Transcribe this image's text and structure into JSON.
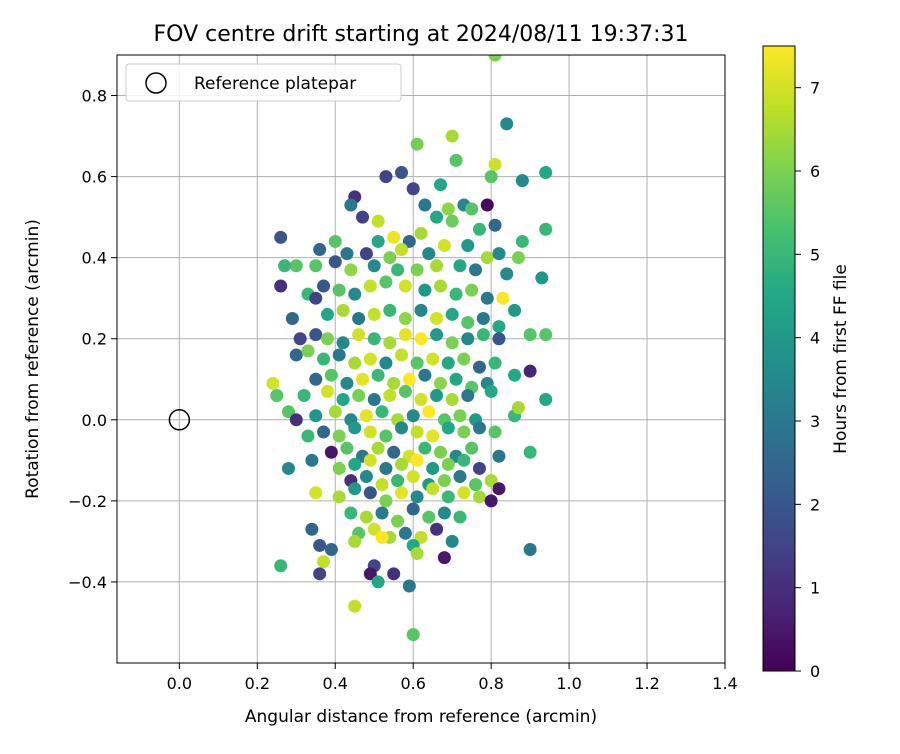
{
  "chart_data": {
    "type": "scatter",
    "title": "FOV centre drift starting at 2024/08/11 19:37:31",
    "xlabel": "Angular distance from reference (arcmin)",
    "ylabel": "Rotation from reference (arcmin)",
    "xlim": [
      -0.16,
      1.4
    ],
    "ylim": [
      -0.6,
      0.9
    ],
    "xticks": [
      "0.0",
      "0.2",
      "0.4",
      "0.6",
      "0.8",
      "1.0",
      "1.2",
      "1.4"
    ],
    "xtick_values": [
      0.0,
      0.2,
      0.4,
      0.6,
      0.8,
      1.0,
      1.2,
      1.4
    ],
    "yticks": [
      "−0.4",
      "−0.2",
      "0.0",
      "0.2",
      "0.4",
      "0.6",
      "0.8"
    ],
    "ytick_values": [
      -0.4,
      -0.2,
      0.0,
      0.2,
      0.4,
      0.6,
      0.8
    ],
    "grid": true,
    "legend": {
      "label": "Reference platepar",
      "position": "top-left"
    },
    "reference_point": {
      "x": 0.0,
      "y": 0.0
    },
    "colorbar": {
      "label": "Hours from first FF file",
      "colormap": "viridis",
      "range": [
        0,
        7.5
      ],
      "ticks": [
        "0",
        "1",
        "2",
        "3",
        "4",
        "5",
        "6",
        "7"
      ],
      "tick_values": [
        0,
        1,
        2,
        3,
        4,
        5,
        6,
        7
      ]
    },
    "points": [
      [
        0.81,
        0.9,
        6.0
      ],
      [
        0.84,
        0.73,
        3.5
      ],
      [
        0.7,
        0.7,
        6.5
      ],
      [
        0.81,
        0.63,
        6.9
      ],
      [
        0.61,
        0.68,
        5.9
      ],
      [
        0.71,
        0.64,
        5.5
      ],
      [
        0.94,
        0.61,
        4.5
      ],
      [
        0.88,
        0.59,
        3.5
      ],
      [
        0.53,
        0.6,
        1.5
      ],
      [
        0.57,
        0.61,
        2.0
      ],
      [
        0.8,
        0.6,
        5.5
      ],
      [
        0.6,
        0.57,
        1.5
      ],
      [
        0.67,
        0.58,
        4.5
      ],
      [
        0.73,
        0.53,
        3.5
      ],
      [
        0.79,
        0.53,
        0.2
      ],
      [
        0.45,
        0.55,
        1.0
      ],
      [
        0.47,
        0.5,
        1.5
      ],
      [
        0.51,
        0.49,
        6.8
      ],
      [
        0.44,
        0.53,
        3.0
      ],
      [
        0.69,
        0.52,
        6.2
      ],
      [
        0.75,
        0.52,
        5.5
      ],
      [
        0.63,
        0.53,
        3.0
      ],
      [
        0.66,
        0.5,
        4.5
      ],
      [
        0.7,
        0.49,
        5.8
      ],
      [
        0.77,
        0.47,
        5.0
      ],
      [
        0.81,
        0.48,
        2.5
      ],
      [
        0.88,
        0.44,
        5.0
      ],
      [
        0.94,
        0.47,
        5.0
      ],
      [
        0.51,
        0.44,
        4.5
      ],
      [
        0.55,
        0.45,
        7.3
      ],
      [
        0.59,
        0.44,
        2.5
      ],
      [
        0.62,
        0.46,
        6.5
      ],
      [
        0.26,
        0.45,
        2.0
      ],
      [
        0.4,
        0.44,
        5.5
      ],
      [
        0.36,
        0.42,
        2.5
      ],
      [
        0.43,
        0.41,
        3.0
      ],
      [
        0.48,
        0.41,
        1.5
      ],
      [
        0.54,
        0.4,
        6.0
      ],
      [
        0.57,
        0.42,
        6.8
      ],
      [
        0.64,
        0.41,
        3.5
      ],
      [
        0.68,
        0.43,
        7.0
      ],
      [
        0.74,
        0.43,
        4.0
      ],
      [
        0.79,
        0.4,
        6.5
      ],
      [
        0.82,
        0.41,
        3.5
      ],
      [
        0.3,
        0.38,
        5.5
      ],
      [
        0.27,
        0.38,
        5.0
      ],
      [
        0.35,
        0.38,
        5.5
      ],
      [
        0.4,
        0.39,
        2.0
      ],
      [
        0.44,
        0.37,
        6.2
      ],
      [
        0.5,
        0.38,
        3.5
      ],
      [
        0.56,
        0.37,
        5.0
      ],
      [
        0.61,
        0.37,
        6.0
      ],
      [
        0.66,
        0.38,
        6.5
      ],
      [
        0.72,
        0.38,
        4.5
      ],
      [
        0.76,
        0.37,
        3.0
      ],
      [
        0.84,
        0.36,
        3.5
      ],
      [
        0.93,
        0.35,
        4.0
      ],
      [
        0.87,
        0.4,
        6.0
      ],
      [
        0.26,
        0.33,
        1.0
      ],
      [
        0.33,
        0.31,
        5.0
      ],
      [
        0.37,
        0.33,
        2.0
      ],
      [
        0.41,
        0.32,
        5.5
      ],
      [
        0.45,
        0.31,
        3.5
      ],
      [
        0.49,
        0.33,
        6.8
      ],
      [
        0.53,
        0.34,
        5.5
      ],
      [
        0.58,
        0.33,
        7.0
      ],
      [
        0.63,
        0.32,
        4.0
      ],
      [
        0.67,
        0.33,
        6.5
      ],
      [
        0.71,
        0.31,
        5.0
      ],
      [
        0.75,
        0.32,
        6.0
      ],
      [
        0.79,
        0.3,
        3.0
      ],
      [
        0.83,
        0.3,
        7.5
      ],
      [
        0.86,
        0.27,
        4.0
      ],
      [
        0.29,
        0.25,
        2.5
      ],
      [
        0.35,
        0.3,
        1.5
      ],
      [
        0.38,
        0.26,
        4.5
      ],
      [
        0.42,
        0.27,
        6.5
      ],
      [
        0.46,
        0.25,
        3.0
      ],
      [
        0.5,
        0.26,
        6.8
      ],
      [
        0.54,
        0.27,
        5.0
      ],
      [
        0.58,
        0.25,
        6.2
      ],
      [
        0.62,
        0.27,
        3.5
      ],
      [
        0.66,
        0.25,
        7.0
      ],
      [
        0.7,
        0.26,
        4.5
      ],
      [
        0.74,
        0.24,
        5.5
      ],
      [
        0.78,
        0.25,
        3.0
      ],
      [
        0.82,
        0.23,
        4.5
      ],
      [
        0.9,
        0.21,
        5.5
      ],
      [
        0.94,
        0.21,
        5.5
      ],
      [
        0.31,
        0.2,
        1.5
      ],
      [
        0.35,
        0.21,
        2.0
      ],
      [
        0.38,
        0.2,
        6.0
      ],
      [
        0.42,
        0.19,
        3.5
      ],
      [
        0.46,
        0.21,
        7.0
      ],
      [
        0.5,
        0.2,
        5.0
      ],
      [
        0.54,
        0.19,
        6.5
      ],
      [
        0.58,
        0.21,
        7.2
      ],
      [
        0.62,
        0.2,
        7.5
      ],
      [
        0.66,
        0.21,
        4.0
      ],
      [
        0.7,
        0.19,
        6.0
      ],
      [
        0.74,
        0.2,
        3.5
      ],
      [
        0.78,
        0.21,
        5.0
      ],
      [
        0.82,
        0.2,
        2.0
      ],
      [
        0.3,
        0.16,
        2.5
      ],
      [
        0.33,
        0.17,
        6.0
      ],
      [
        0.37,
        0.15,
        5.0
      ],
      [
        0.41,
        0.16,
        3.0
      ],
      [
        0.45,
        0.14,
        6.5
      ],
      [
        0.49,
        0.15,
        7.0
      ],
      [
        0.53,
        0.14,
        3.5
      ],
      [
        0.57,
        0.16,
        6.8
      ],
      [
        0.61,
        0.14,
        5.5
      ],
      [
        0.65,
        0.15,
        7.0
      ],
      [
        0.69,
        0.14,
        4.5
      ],
      [
        0.73,
        0.15,
        6.0
      ],
      [
        0.77,
        0.13,
        2.5
      ],
      [
        0.81,
        0.14,
        5.0
      ],
      [
        0.9,
        0.12,
        0.8
      ],
      [
        0.86,
        0.11,
        4.5
      ],
      [
        0.24,
        0.09,
        7.0
      ],
      [
        0.35,
        0.1,
        2.5
      ],
      [
        0.39,
        0.11,
        5.5
      ],
      [
        0.43,
        0.09,
        3.5
      ],
      [
        0.47,
        0.1,
        7.2
      ],
      [
        0.51,
        0.11,
        5.0
      ],
      [
        0.55,
        0.09,
        6.5
      ],
      [
        0.59,
        0.1,
        7.5
      ],
      [
        0.63,
        0.11,
        3.0
      ],
      [
        0.67,
        0.09,
        6.2
      ],
      [
        0.71,
        0.1,
        4.5
      ],
      [
        0.75,
        0.08,
        5.5
      ],
      [
        0.79,
        0.09,
        3.5
      ],
      [
        0.25,
        0.06,
        5.5
      ],
      [
        0.32,
        0.06,
        5.0
      ],
      [
        0.38,
        0.07,
        7.0
      ],
      [
        0.42,
        0.05,
        4.5
      ],
      [
        0.46,
        0.06,
        6.0
      ],
      [
        0.5,
        0.05,
        3.0
      ],
      [
        0.54,
        0.06,
        6.8
      ],
      [
        0.58,
        0.07,
        5.5
      ],
      [
        0.62,
        0.05,
        7.0
      ],
      [
        0.66,
        0.06,
        4.0
      ],
      [
        0.7,
        0.05,
        6.5
      ],
      [
        0.74,
        0.06,
        3.0
      ],
      [
        0.8,
        0.07,
        4.5
      ],
      [
        0.94,
        0.05,
        4.5
      ],
      [
        0.28,
        0.02,
        5.5
      ],
      [
        0.3,
        0.0,
        1.0
      ],
      [
        0.35,
        0.01,
        4.0
      ],
      [
        0.4,
        0.02,
        6.5
      ],
      [
        0.44,
        0.0,
        3.5
      ],
      [
        0.48,
        0.01,
        7.2
      ],
      [
        0.52,
        0.02,
        5.0
      ],
      [
        0.56,
        0.0,
        6.5
      ],
      [
        0.6,
        0.01,
        3.5
      ],
      [
        0.64,
        0.02,
        7.5
      ],
      [
        0.68,
        0.0,
        5.5
      ],
      [
        0.72,
        0.01,
        6.0
      ],
      [
        0.76,
        0.0,
        4.0
      ],
      [
        0.86,
        0.01,
        5.0
      ],
      [
        0.87,
        0.03,
        6.5
      ],
      [
        0.33,
        -0.04,
        5.0
      ],
      [
        0.37,
        -0.03,
        2.5
      ],
      [
        0.41,
        -0.04,
        6.0
      ],
      [
        0.45,
        -0.02,
        4.0
      ],
      [
        0.49,
        -0.03,
        7.0
      ],
      [
        0.53,
        -0.04,
        5.5
      ],
      [
        0.57,
        -0.02,
        3.5
      ],
      [
        0.61,
        -0.03,
        6.8
      ],
      [
        0.65,
        -0.04,
        7.2
      ],
      [
        0.69,
        -0.02,
        4.5
      ],
      [
        0.73,
        -0.03,
        6.0
      ],
      [
        0.77,
        -0.02,
        3.0
      ],
      [
        0.81,
        -0.03,
        5.5
      ],
      [
        0.39,
        -0.08,
        0.5
      ],
      [
        0.43,
        -0.07,
        5.5
      ],
      [
        0.47,
        -0.09,
        3.0
      ],
      [
        0.51,
        -0.07,
        6.5
      ],
      [
        0.55,
        -0.08,
        2.5
      ],
      [
        0.59,
        -0.09,
        7.0
      ],
      [
        0.63,
        -0.07,
        5.0
      ],
      [
        0.67,
        -0.08,
        6.0
      ],
      [
        0.71,
        -0.09,
        3.5
      ],
      [
        0.75,
        -0.07,
        5.5
      ],
      [
        0.82,
        -0.09,
        3.0
      ],
      [
        0.9,
        -0.08,
        5.0
      ],
      [
        0.28,
        -0.12,
        3.5
      ],
      [
        0.34,
        -0.1,
        3.0
      ],
      [
        0.41,
        -0.12,
        6.0
      ],
      [
        0.45,
        -0.11,
        4.5
      ],
      [
        0.49,
        -0.1,
        7.0
      ],
      [
        0.53,
        -0.12,
        3.0
      ],
      [
        0.57,
        -0.11,
        6.5
      ],
      [
        0.61,
        -0.1,
        7.5
      ],
      [
        0.65,
        -0.12,
        4.0
      ],
      [
        0.69,
        -0.11,
        6.0
      ],
      [
        0.73,
        -0.1,
        5.0
      ],
      [
        0.77,
        -0.12,
        1.5
      ],
      [
        0.44,
        -0.15,
        1.0
      ],
      [
        0.48,
        -0.14,
        3.5
      ],
      [
        0.52,
        -0.16,
        6.8
      ],
      [
        0.56,
        -0.15,
        5.0
      ],
      [
        0.6,
        -0.14,
        7.0
      ],
      [
        0.64,
        -0.16,
        4.0
      ],
      [
        0.68,
        -0.15,
        6.0
      ],
      [
        0.72,
        -0.14,
        3.0
      ],
      [
        0.76,
        -0.16,
        5.5
      ],
      [
        0.8,
        -0.15,
        6.5
      ],
      [
        0.82,
        -0.17,
        0.5
      ],
      [
        0.35,
        -0.18,
        7.0
      ],
      [
        0.41,
        -0.19,
        6.5
      ],
      [
        0.45,
        -0.17,
        4.0
      ],
      [
        0.49,
        -0.18,
        2.0
      ],
      [
        0.53,
        -0.2,
        6.0
      ],
      [
        0.57,
        -0.18,
        7.2
      ],
      [
        0.61,
        -0.19,
        3.5
      ],
      [
        0.65,
        -0.17,
        6.8
      ],
      [
        0.69,
        -0.19,
        5.0
      ],
      [
        0.73,
        -0.18,
        7.0
      ],
      [
        0.77,
        -0.19,
        6.5
      ],
      [
        0.8,
        -0.2,
        0.5
      ],
      [
        0.44,
        -0.23,
        5.0
      ],
      [
        0.48,
        -0.24,
        6.5
      ],
      [
        0.52,
        -0.23,
        3.0
      ],
      [
        0.56,
        -0.25,
        6.0
      ],
      [
        0.6,
        -0.22,
        2.5
      ],
      [
        0.64,
        -0.24,
        5.5
      ],
      [
        0.68,
        -0.23,
        3.5
      ],
      [
        0.72,
        -0.24,
        5.0
      ],
      [
        0.46,
        -0.28,
        5.5
      ],
      [
        0.5,
        -0.27,
        7.0
      ],
      [
        0.54,
        -0.29,
        6.5
      ],
      [
        0.58,
        -0.28,
        3.0
      ],
      [
        0.62,
        -0.29,
        6.8
      ],
      [
        0.66,
        -0.27,
        1.0
      ],
      [
        0.7,
        -0.3,
        3.5
      ],
      [
        0.34,
        -0.27,
        2.5
      ],
      [
        0.45,
        -0.3,
        6.5
      ],
      [
        0.6,
        -0.31,
        4.5
      ],
      [
        0.52,
        -0.29,
        7.5
      ],
      [
        0.36,
        -0.31,
        2.0
      ],
      [
        0.39,
        -0.32,
        2.5
      ],
      [
        0.37,
        -0.35,
        6.8
      ],
      [
        0.26,
        -0.36,
        5.0
      ],
      [
        0.5,
        -0.36,
        1.5
      ],
      [
        0.55,
        -0.38,
        1.0
      ],
      [
        0.49,
        -0.38,
        0.5
      ],
      [
        0.51,
        -0.4,
        4.5
      ],
      [
        0.59,
        -0.41,
        3.0
      ],
      [
        0.68,
        -0.34,
        0.5
      ],
      [
        0.61,
        -0.33,
        6.5
      ],
      [
        0.36,
        -0.38,
        1.5
      ],
      [
        0.9,
        -0.32,
        3.0
      ],
      [
        0.45,
        -0.46,
        6.8
      ],
      [
        0.6,
        -0.53,
        5.5
      ]
    ]
  }
}
